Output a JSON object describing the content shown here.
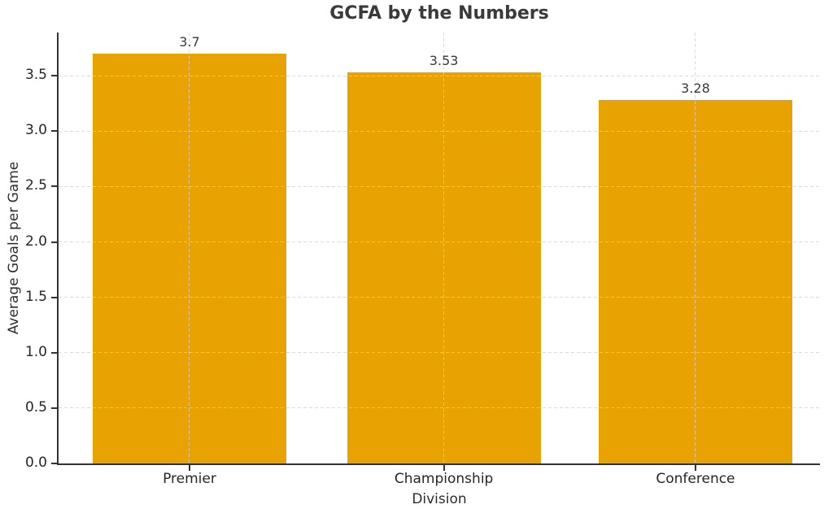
{
  "chart_data": {
    "type": "bar",
    "title": "GCFA by the Numbers",
    "xlabel": "Division",
    "ylabel": "Average Goals per Game",
    "categories": [
      "Premier",
      "Championship",
      "Conference"
    ],
    "values": [
      3.7,
      3.53,
      3.28
    ],
    "value_labels": [
      "3.7",
      "3.53",
      "3.28"
    ],
    "yticks": [
      0.0,
      0.5,
      1.0,
      1.5,
      2.0,
      2.5,
      3.0,
      3.5
    ],
    "ytick_labels": [
      "0.0",
      "0.5",
      "1.0",
      "1.5",
      "2.0",
      "2.5",
      "3.0",
      "3.5"
    ],
    "ylim": [
      0,
      3.89
    ],
    "grid": true,
    "legend": null,
    "bar_color": "#E8A202",
    "grid_color": "#D2D2D2",
    "spine_color": "#333333",
    "title_color": "#3A3A3A",
    "tick_color": "#262626"
  }
}
